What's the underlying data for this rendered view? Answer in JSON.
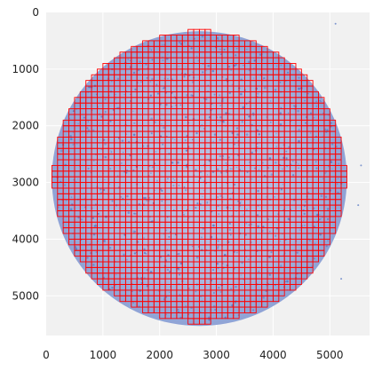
{
  "figure": {
    "x_ticks": [
      "0",
      "1000",
      "2000",
      "3000",
      "4000",
      "5000"
    ],
    "y_ticks": [
      "0",
      "1000",
      "2000",
      "3000",
      "4000",
      "5000"
    ],
    "tile_size": 100,
    "xlim": [
      0,
      5700
    ],
    "ylim": [
      5700,
      0
    ],
    "tissue_center": [
      2700,
      2900
    ],
    "tissue_radius": 2600,
    "colors": {
      "background": "#f1f1f1",
      "tissue": "#aab8de",
      "tissue_stain": "#4d6fbf",
      "tile_outline": "#ff0000",
      "grid": "#ffffff"
    }
  }
}
